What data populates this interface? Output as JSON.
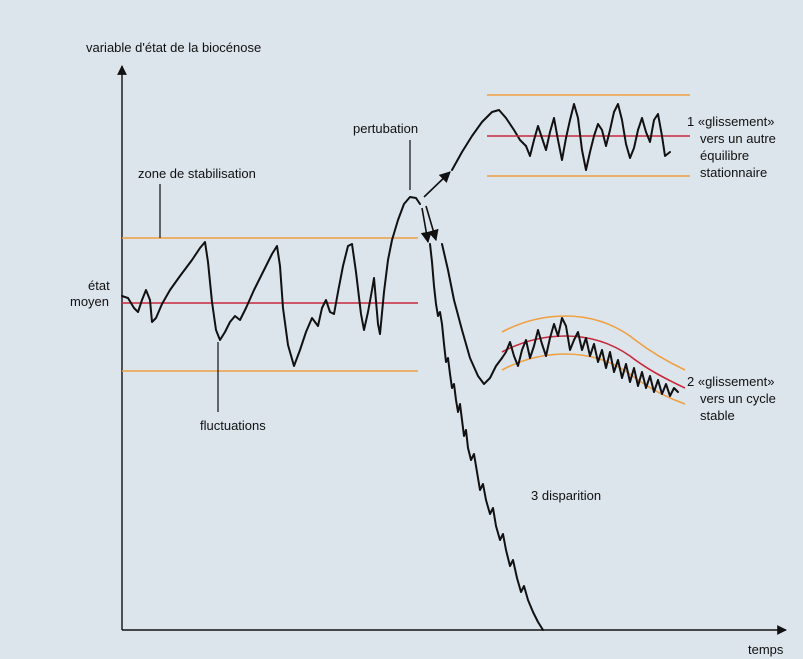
{
  "axes": {
    "y_label": "variable d'état de la biocénose",
    "x_label": "temps"
  },
  "labels": {
    "etat_moyen_line1": "état",
    "etat_moyen_line2": "moyen",
    "zone_stabilisation": "zone de stabilisation",
    "fluctuations": "fluctuations",
    "perturbation": "pertubation",
    "outcome1": [
      "1 «glissement»",
      "vers un autre",
      "équilibre",
      "stationnaire"
    ],
    "outcome2": [
      "2 «glissement»",
      "vers un cycle",
      "stable"
    ],
    "outcome3": "3  disparition"
  },
  "colors": {
    "background": "#dce4ec",
    "axis": "#111111",
    "curve": "#111111",
    "band": "#f0a040",
    "mean": "#c8283a"
  },
  "icons": {
    "axis_arrow": "triangle-arrowhead",
    "flow_arrow": "triangle-arrowhead"
  }
}
